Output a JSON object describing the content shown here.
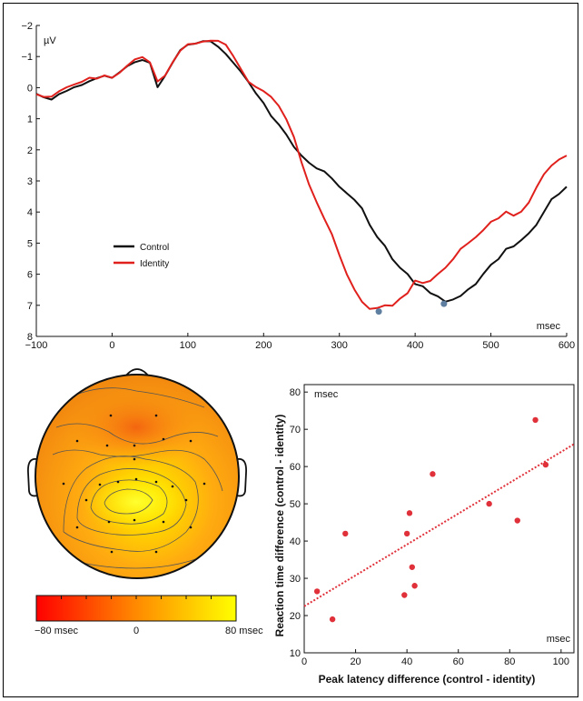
{
  "colors": {
    "control": "#111111",
    "identity": "#e0201c",
    "peak_marker": "#5f7fa0",
    "scatter": "#e0313a",
    "head_outline": "#111111",
    "contour": "#555555"
  },
  "chart_data": [
    {
      "type": "line",
      "ylabel": "µV",
      "xlabel": "msec",
      "xlim": [
        -100,
        600
      ],
      "ylim": [
        8,
        -2
      ],
      "y_inverted": true,
      "xticks": [
        -100,
        0,
        100,
        200,
        300,
        400,
        500,
        600
      ],
      "yticks": [
        -2,
        -1,
        0,
        1,
        2,
        3,
        4,
        5,
        6,
        7,
        8
      ],
      "legend_position": "middle-left",
      "series": [
        {
          "name": "Control",
          "color": "#111111",
          "x": [
            -100,
            -90,
            -80,
            -70,
            -60,
            -50,
            -40,
            -30,
            -20,
            -10,
            0,
            10,
            20,
            30,
            40,
            50,
            60,
            70,
            80,
            90,
            100,
            110,
            120,
            130,
            140,
            150,
            160,
            170,
            180,
            190,
            200,
            210,
            220,
            230,
            240,
            250,
            260,
            270,
            280,
            290,
            300,
            310,
            320,
            330,
            340,
            350,
            360,
            370,
            380,
            390,
            400,
            410,
            420,
            430,
            440,
            450,
            460,
            470,
            480,
            490,
            500,
            510,
            520,
            530,
            540,
            550,
            560,
            570,
            580,
            590,
            600
          ],
          "y": [
            0.2,
            0.3,
            0.4,
            0.2,
            0.1,
            0.0,
            -0.1,
            -0.2,
            -0.3,
            -0.4,
            -0.3,
            -0.5,
            -0.7,
            -0.8,
            -0.9,
            -0.8,
            0.0,
            -0.4,
            -0.8,
            -1.2,
            -1.4,
            -1.4,
            -1.5,
            -1.5,
            -1.3,
            -1.1,
            -0.8,
            -0.5,
            -0.2,
            0.2,
            0.5,
            0.9,
            1.2,
            1.5,
            1.9,
            2.2,
            2.4,
            2.6,
            2.7,
            2.9,
            3.2,
            3.4,
            3.6,
            3.9,
            4.4,
            4.8,
            5.1,
            5.5,
            5.8,
            6.0,
            6.3,
            6.4,
            6.6,
            6.7,
            6.9,
            6.8,
            6.7,
            6.5,
            6.3,
            6.0,
            5.7,
            5.5,
            5.2,
            5.1,
            4.9,
            4.7,
            4.4,
            4.0,
            3.6,
            3.4,
            3.2
          ]
        },
        {
          "name": "Identity",
          "color": "#e0201c",
          "x": [
            -100,
            -90,
            -80,
            -70,
            -60,
            -50,
            -40,
            -30,
            -20,
            -10,
            0,
            10,
            20,
            30,
            40,
            50,
            60,
            70,
            80,
            90,
            100,
            110,
            120,
            130,
            140,
            150,
            160,
            170,
            180,
            190,
            200,
            210,
            220,
            230,
            240,
            250,
            260,
            270,
            280,
            290,
            300,
            310,
            320,
            330,
            340,
            350,
            360,
            370,
            380,
            390,
            400,
            410,
            420,
            430,
            440,
            450,
            460,
            470,
            480,
            490,
            500,
            510,
            520,
            530,
            540,
            550,
            560,
            570,
            580,
            590,
            600
          ],
          "y": [
            0.2,
            0.3,
            0.3,
            0.1,
            0.0,
            -0.1,
            -0.2,
            -0.3,
            -0.3,
            -0.4,
            -0.3,
            -0.5,
            -0.7,
            -0.9,
            -1.0,
            -0.8,
            -0.2,
            -0.4,
            -0.8,
            -1.2,
            -1.4,
            -1.4,
            -1.5,
            -1.5,
            -1.5,
            -1.4,
            -1.0,
            -0.6,
            -0.2,
            0.0,
            0.1,
            0.3,
            0.6,
            1.0,
            1.6,
            2.4,
            3.1,
            3.7,
            4.2,
            4.7,
            5.4,
            6.0,
            6.5,
            6.9,
            7.1,
            7.1,
            7.0,
            7.0,
            6.8,
            6.6,
            6.2,
            6.3,
            6.2,
            6.0,
            5.8,
            5.5,
            5.2,
            5.0,
            4.8,
            4.6,
            4.3,
            4.2,
            4.0,
            4.1,
            4.0,
            3.7,
            3.2,
            2.8,
            2.5,
            2.3,
            2.2
          ]
        }
      ],
      "peaks": [
        {
          "x": 352,
          "y": 7.2
        },
        {
          "x": 438,
          "y": 6.95
        }
      ]
    },
    {
      "type": "heatmap",
      "colorbar_min": -80,
      "colorbar_max": 80,
      "colorbar_ticks": [
        {
          "value": -80,
          "label": "−80 msec"
        },
        {
          "value": 0,
          "label": "0"
        },
        {
          "value": 80,
          "label": "80 msec"
        }
      ]
    },
    {
      "type": "scatter",
      "xlabel": "Peak latency difference (control - identity)",
      "ylabel": "Reaction time difference (control - identity)",
      "y_unit_label": "msec",
      "x_unit_label": "msec",
      "xlim": [
        0,
        105
      ],
      "ylim": [
        10,
        82
      ],
      "xticks": [
        0,
        20,
        40,
        60,
        80,
        100
      ],
      "yticks": [
        10,
        20,
        30,
        40,
        50,
        60,
        70,
        80
      ],
      "points": [
        {
          "x": 5,
          "y": 26.5
        },
        {
          "x": 11,
          "y": 19
        },
        {
          "x": 16,
          "y": 42
        },
        {
          "x": 39,
          "y": 25.5
        },
        {
          "x": 40,
          "y": 42
        },
        {
          "x": 41,
          "y": 47.5
        },
        {
          "x": 42,
          "y": 33
        },
        {
          "x": 43,
          "y": 28
        },
        {
          "x": 50,
          "y": 58
        },
        {
          "x": 72,
          "y": 50
        },
        {
          "x": 83,
          "y": 45.5
        },
        {
          "x": 90,
          "y": 72.5
        },
        {
          "x": 94,
          "y": 60.5
        }
      ],
      "trendline": {
        "x": [
          0,
          105
        ],
        "y": [
          22.5,
          66
        ]
      }
    }
  ]
}
